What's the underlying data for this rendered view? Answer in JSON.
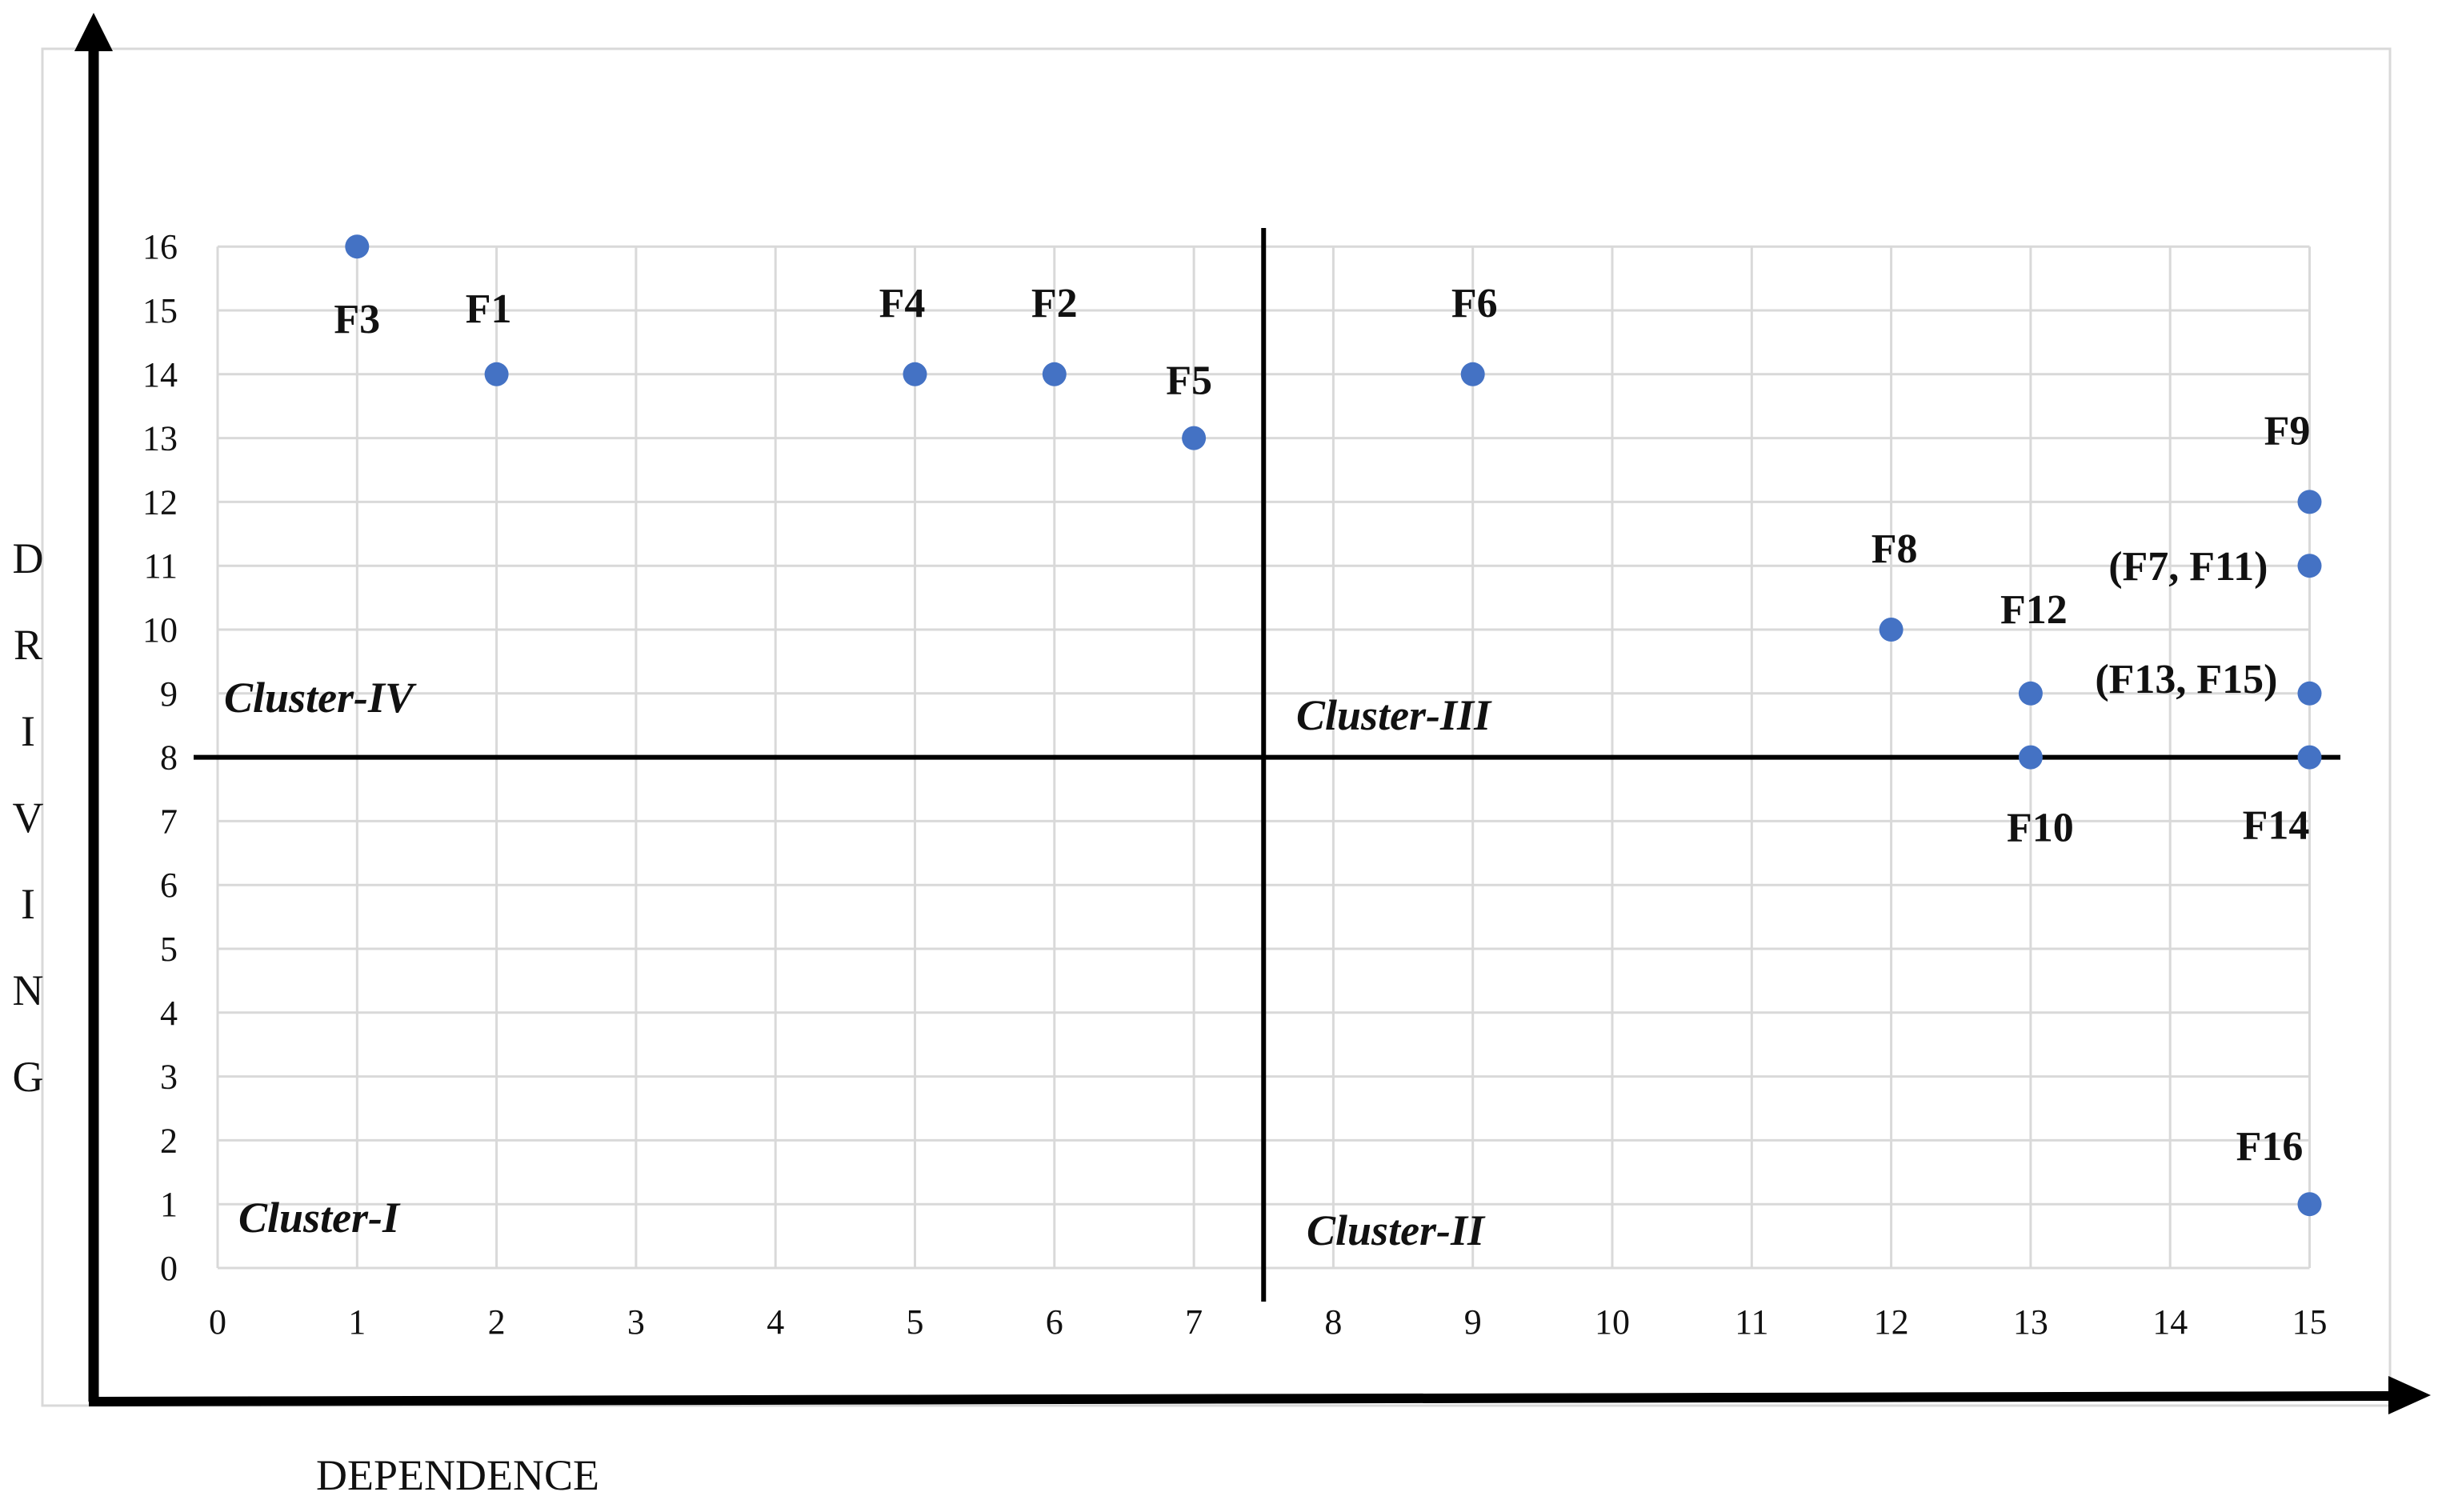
{
  "chart_data": {
    "type": "scatter",
    "xlabel": "DEPENDENCE",
    "ylabel": "DRIVING",
    "xlim": [
      0,
      15
    ],
    "ylim": [
      0,
      16
    ],
    "x_ticks": [
      "0",
      "1",
      "2",
      "3",
      "4",
      "5",
      "6",
      "7",
      "8",
      "9",
      "10",
      "11",
      "12",
      "13",
      "14",
      "15"
    ],
    "y_ticks": [
      "0",
      "1",
      "2",
      "3",
      "4",
      "5",
      "6",
      "7",
      "8",
      "9",
      "10",
      "11",
      "12",
      "13",
      "14",
      "15",
      "16"
    ],
    "grid": true,
    "divider_x": 7.5,
    "divider_y": 8,
    "marker_color": "#4472C4",
    "points": [
      {
        "label": "F3",
        "x": 1,
        "y": 16
      },
      {
        "label": "F1",
        "x": 2,
        "y": 14
      },
      {
        "label": "F4",
        "x": 5,
        "y": 14
      },
      {
        "label": "F2",
        "x": 6,
        "y": 14
      },
      {
        "label": "F5",
        "x": 7,
        "y": 13
      },
      {
        "label": "F6",
        "x": 9,
        "y": 14
      },
      {
        "label": "F9",
        "x": 15,
        "y": 12
      },
      {
        "label": "(F7, F11)",
        "x": 15,
        "y": 11
      },
      {
        "label": "F8",
        "x": 12,
        "y": 10
      },
      {
        "label": "F12",
        "x": 13,
        "y": 9
      },
      {
        "label": "(F13, F15)",
        "x": 15,
        "y": 9
      },
      {
        "label": "F10",
        "x": 13,
        "y": 8
      },
      {
        "label": "F14",
        "x": 15,
        "y": 8
      },
      {
        "label": "F16",
        "x": 15,
        "y": 1
      }
    ],
    "clusters": [
      {
        "label": "Cluster-IV",
        "quadrant": "top-left"
      },
      {
        "label": "Cluster-III",
        "quadrant": "top-right"
      },
      {
        "label": "Cluster-I",
        "quadrant": "bottom-left"
      },
      {
        "label": "Cluster-II",
        "quadrant": "bottom-right"
      }
    ]
  }
}
